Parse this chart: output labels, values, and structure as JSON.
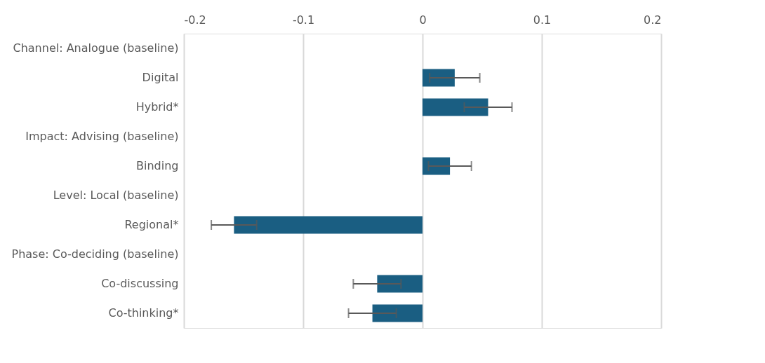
{
  "chart_data": {
    "type": "bar",
    "orientation": "horizontal",
    "categories": [
      "Channel: Analogue (baseline)",
      "Digital",
      "Hybrid*",
      "Impact: Advising (baseline)",
      "Binding",
      "Level: Local (baseline)",
      "Regional*",
      "Phase: Co-deciding (baseline)",
      "Co-discussing",
      "Co-thinking*"
    ],
    "values": [
      null,
      0.027,
      0.055,
      null,
      0.023,
      null,
      -0.158,
      null,
      -0.038,
      -0.042
    ],
    "errors": [
      null,
      0.021,
      0.02,
      null,
      0.018,
      null,
      0.019,
      null,
      0.02,
      0.02
    ],
    "color": "#1a5e82",
    "xlim": [
      -0.2,
      0.2
    ],
    "xticks": [
      -0.2,
      -0.1,
      0,
      0.1,
      0.2
    ],
    "grid": "x"
  }
}
